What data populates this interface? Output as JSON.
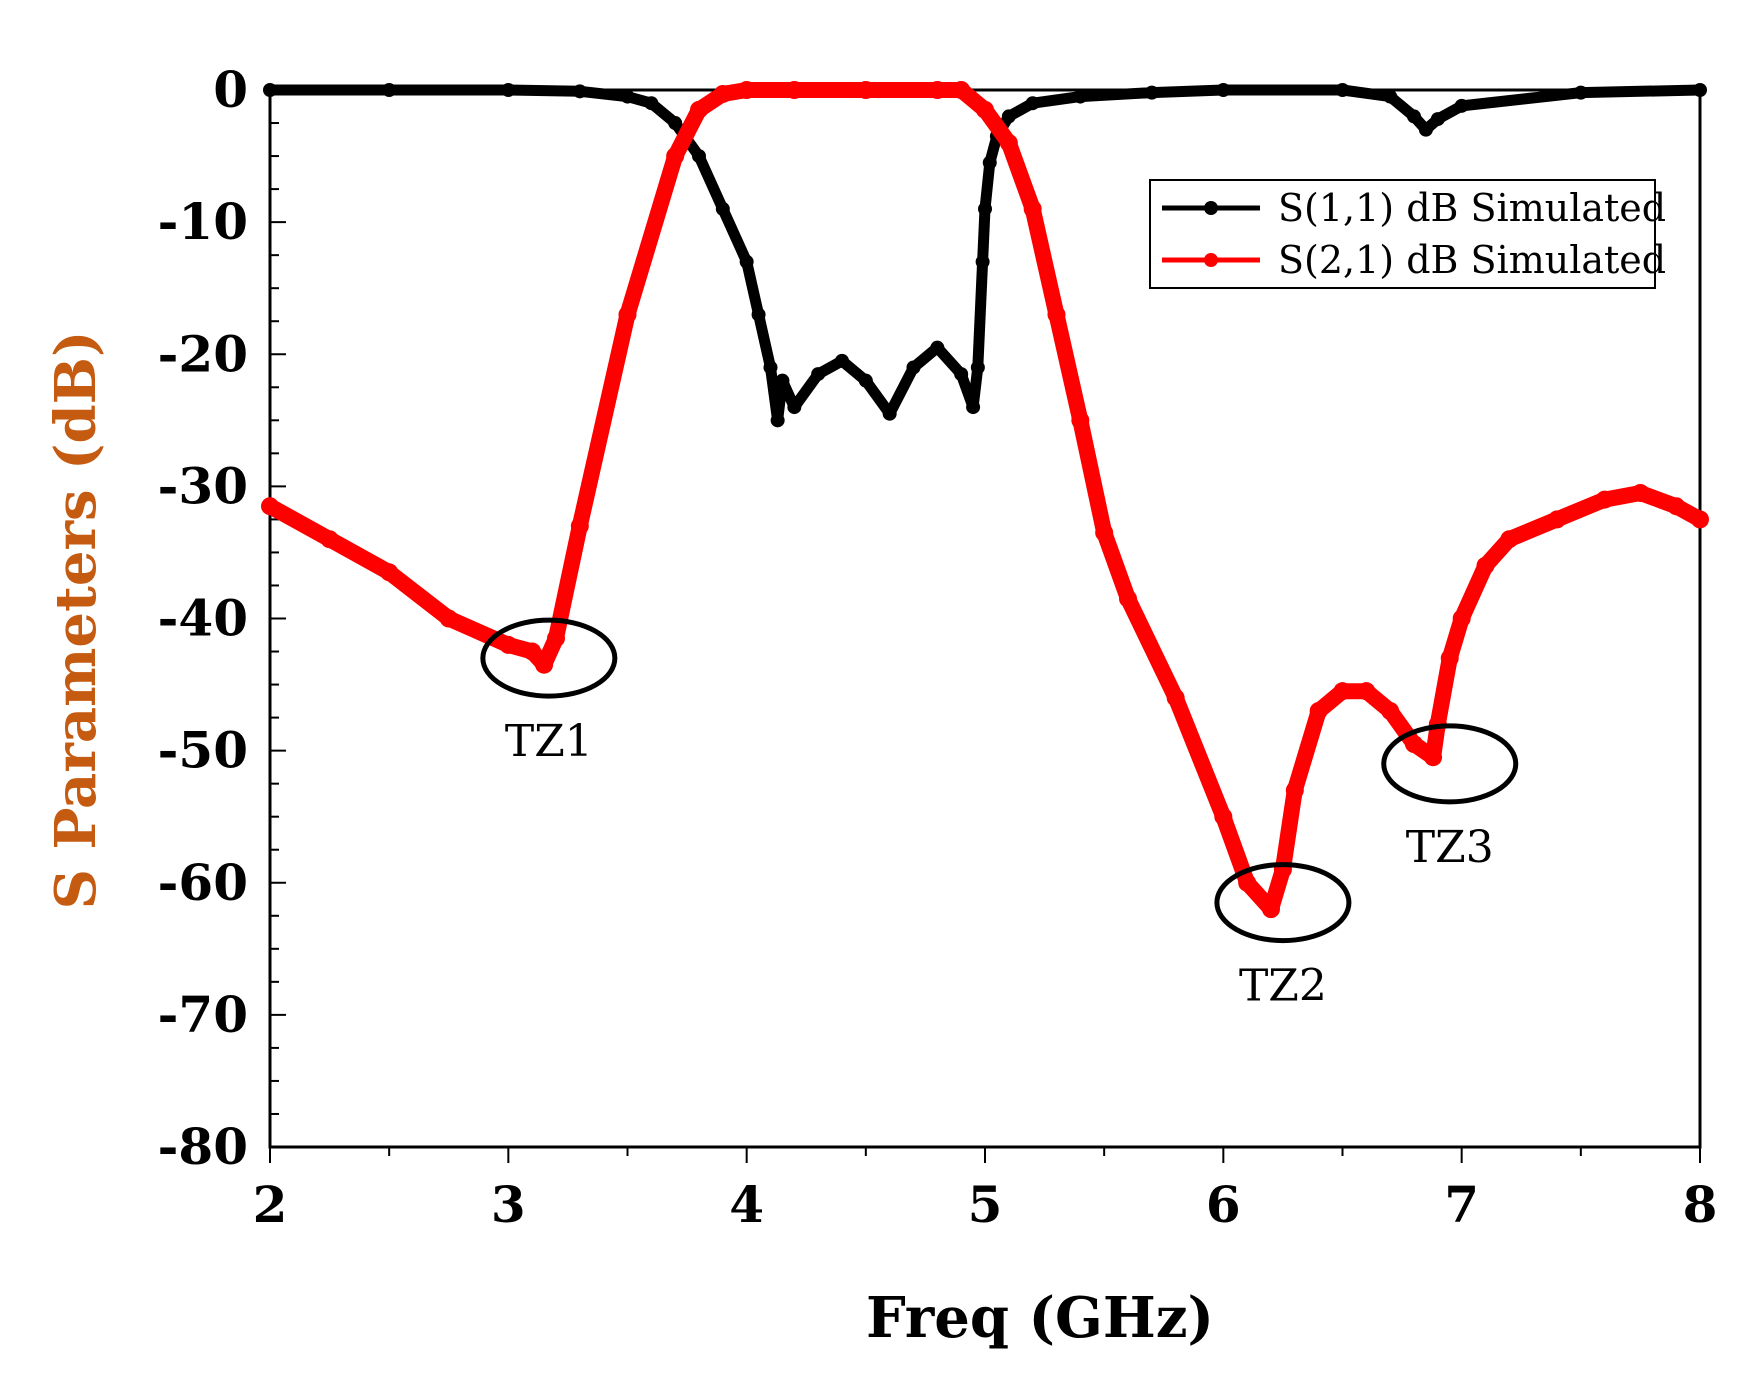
{
  "chart_data": {
    "type": "line",
    "title": "",
    "xlabel": "Freq (GHz)",
    "ylabel": "S Parameters (dB)",
    "xlim": [
      2,
      8
    ],
    "ylim": [
      -80,
      0
    ],
    "xticks": [
      "2",
      "3",
      "4",
      "5",
      "6",
      "7",
      "8"
    ],
    "yticks": [
      "0",
      "-10",
      "-20",
      "-30",
      "-40",
      "-50",
      "-60",
      "-70",
      "-80"
    ],
    "grid": false,
    "legend_position": "top-right",
    "xlabel_color": "#000000",
    "ylabel_color": "#c55a11",
    "series": [
      {
        "name": "S(1,1) dB Simulated",
        "color": "#000000",
        "x": [
          2.0,
          2.5,
          3.0,
          3.3,
          3.5,
          3.6,
          3.7,
          3.8,
          3.9,
          4.0,
          4.05,
          4.1,
          4.13,
          4.15,
          4.2,
          4.3,
          4.4,
          4.5,
          4.6,
          4.7,
          4.8,
          4.9,
          4.95,
          4.97,
          4.99,
          5.0,
          5.02,
          5.05,
          5.1,
          5.2,
          5.4,
          5.7,
          6.0,
          6.5,
          6.7,
          6.8,
          6.85,
          6.9,
          7.0,
          7.5,
          8.0
        ],
        "y": [
          0,
          0,
          0,
          -0.1,
          -0.5,
          -1,
          -2.5,
          -5,
          -9,
          -13,
          -17,
          -21,
          -25,
          -22,
          -24,
          -21.5,
          -20.5,
          -22,
          -24.5,
          -21,
          -19.5,
          -21.5,
          -24,
          -21,
          -13,
          -9,
          -5.5,
          -3.5,
          -2,
          -1,
          -0.5,
          -0.2,
          0,
          0,
          -0.5,
          -2,
          -3,
          -2.2,
          -1.2,
          -0.2,
          0
        ]
      },
      {
        "name": "S(2,1) dB Simulated",
        "color": "#ff0000",
        "x": [
          2.0,
          2.25,
          2.5,
          2.75,
          3.0,
          3.1,
          3.15,
          3.2,
          3.3,
          3.5,
          3.7,
          3.8,
          3.9,
          4.0,
          4.2,
          4.5,
          4.8,
          4.9,
          5.0,
          5.1,
          5.2,
          5.3,
          5.4,
          5.5,
          5.6,
          5.8,
          6.0,
          6.1,
          6.2,
          6.25,
          6.3,
          6.4,
          6.5,
          6.6,
          6.7,
          6.8,
          6.88,
          6.9,
          6.95,
          7.0,
          7.1,
          7.2,
          7.4,
          7.6,
          7.75,
          7.9,
          8.0
        ],
        "y": [
          -31.5,
          -34,
          -36.5,
          -40,
          -42,
          -42.5,
          -43.5,
          -41.5,
          -33,
          -17,
          -5,
          -1.5,
          -0.3,
          0,
          0,
          0,
          0,
          0,
          -1.5,
          -4,
          -9,
          -17,
          -25,
          -33.5,
          -38.5,
          -46,
          -55,
          -60,
          -62,
          -59,
          -53,
          -47,
          -45.5,
          -45.5,
          -47,
          -49.5,
          -50.5,
          -48,
          -43,
          -40,
          -36,
          -34,
          -32.5,
          -31,
          -30.5,
          -31.5,
          -32.5
        ]
      }
    ],
    "annotations": [
      {
        "text": "TZ1",
        "x": 3.17,
        "y": -43
      },
      {
        "text": "TZ2",
        "x": 6.25,
        "y": -61.5
      },
      {
        "text": "TZ3",
        "x": 6.95,
        "y": -51
      }
    ]
  }
}
